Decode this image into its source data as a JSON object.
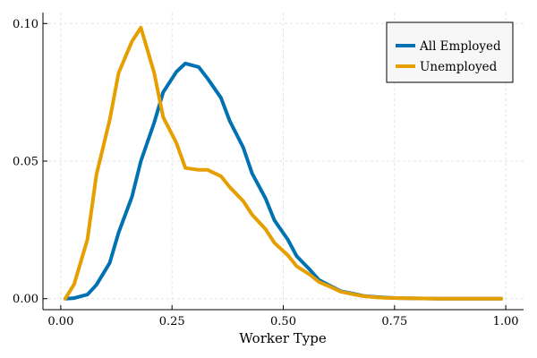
{
  "chart_data": {
    "type": "line",
    "xlabel": "Worker Type",
    "ylabel": "",
    "xlim": [
      -0.04,
      1.04
    ],
    "ylim": [
      -0.004,
      0.104
    ],
    "xticks": [
      0.0,
      0.25,
      0.5,
      0.75,
      1.0
    ],
    "xtick_labels": [
      "0.00",
      "0.25",
      "0.50",
      "0.75",
      "1.00"
    ],
    "yticks": [
      0.0,
      0.05,
      0.1
    ],
    "ytick_labels": [
      "0.00",
      "0.05",
      "0.10"
    ],
    "grid": true,
    "legend_position": "top-right",
    "series": [
      {
        "name": "All Employed",
        "color": "#0072B2",
        "x": [
          0.01,
          0.03,
          0.06,
          0.08,
          0.11,
          0.13,
          0.16,
          0.18,
          0.21,
          0.23,
          0.26,
          0.28,
          0.31,
          0.33,
          0.36,
          0.38,
          0.41,
          0.43,
          0.46,
          0.48,
          0.51,
          0.53,
          0.56,
          0.58,
          0.61,
          0.63,
          0.66,
          0.68,
          0.71,
          0.73,
          0.76,
          0.8,
          0.85,
          0.9,
          0.95,
          0.99
        ],
        "y": [
          0.0,
          0.0002,
          0.0015,
          0.005,
          0.013,
          0.024,
          0.037,
          0.05,
          0.064,
          0.075,
          0.0825,
          0.0855,
          0.0842,
          0.08,
          0.073,
          0.0645,
          0.055,
          0.0455,
          0.0365,
          0.0285,
          0.0215,
          0.0155,
          0.0105,
          0.0068,
          0.0043,
          0.0027,
          0.0017,
          0.001,
          0.0006,
          0.0004,
          0.0002,
          0.0001,
          0.0,
          0.0,
          0.0,
          0.0
        ]
      },
      {
        "name": "Unemployed",
        "color": "#E69F00",
        "x": [
          0.01,
          0.03,
          0.06,
          0.08,
          0.11,
          0.13,
          0.16,
          0.18,
          0.21,
          0.23,
          0.26,
          0.28,
          0.31,
          0.33,
          0.36,
          0.38,
          0.41,
          0.43,
          0.46,
          0.48,
          0.51,
          0.53,
          0.56,
          0.58,
          0.61,
          0.63,
          0.66,
          0.68,
          0.71,
          0.73,
          0.76,
          0.8,
          0.85,
          0.9,
          0.95,
          0.99
        ],
        "y": [
          0.0,
          0.0052,
          0.0215,
          0.045,
          0.065,
          0.082,
          0.0935,
          0.0985,
          0.082,
          0.066,
          0.0565,
          0.0475,
          0.0468,
          0.0468,
          0.0445,
          0.0405,
          0.0355,
          0.0305,
          0.0253,
          0.0203,
          0.0158,
          0.0118,
          0.0087,
          0.0061,
          0.004,
          0.0025,
          0.0015,
          0.0009,
          0.0005,
          0.0003,
          0.0002,
          0.0001,
          0.0,
          0.0,
          0.0,
          0.0
        ]
      }
    ]
  }
}
